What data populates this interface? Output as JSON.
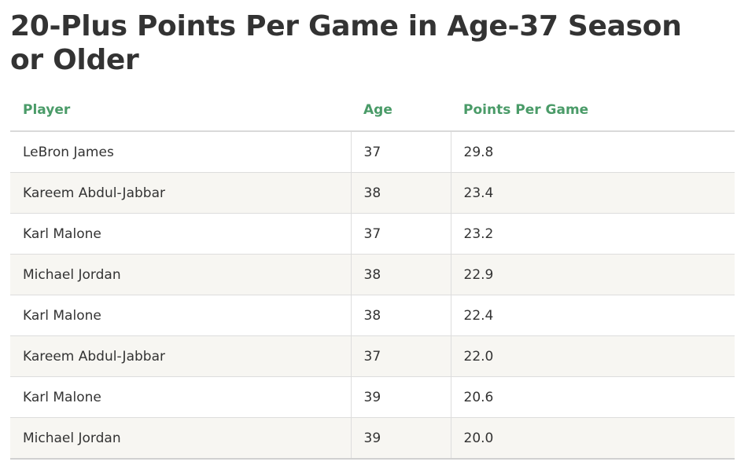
{
  "title": "20-Plus Points Per Game in Age-37 Season or Older",
  "colors": {
    "header_text": "#4a9b68",
    "body_text": "#333333",
    "stripe": "#f7f6f2",
    "rule": "#dddddd"
  },
  "chart_data": {
    "type": "table",
    "title": "20-Plus Points Per Game in Age-37 Season or Older",
    "columns": [
      "Player",
      "Age",
      "Points Per Game"
    ],
    "rows": [
      [
        "LeBron James",
        "37",
        "29.8"
      ],
      [
        "Kareem Abdul-Jabbar",
        "38",
        "23.4"
      ],
      [
        "Karl Malone",
        "37",
        "23.2"
      ],
      [
        "Michael Jordan",
        "38",
        "22.9"
      ],
      [
        "Karl Malone",
        "38",
        "22.4"
      ],
      [
        "Kareem Abdul-Jabbar",
        "37",
        "22.0"
      ],
      [
        "Karl Malone",
        "39",
        "20.6"
      ],
      [
        "Michael Jordan",
        "39",
        "20.0"
      ]
    ]
  }
}
